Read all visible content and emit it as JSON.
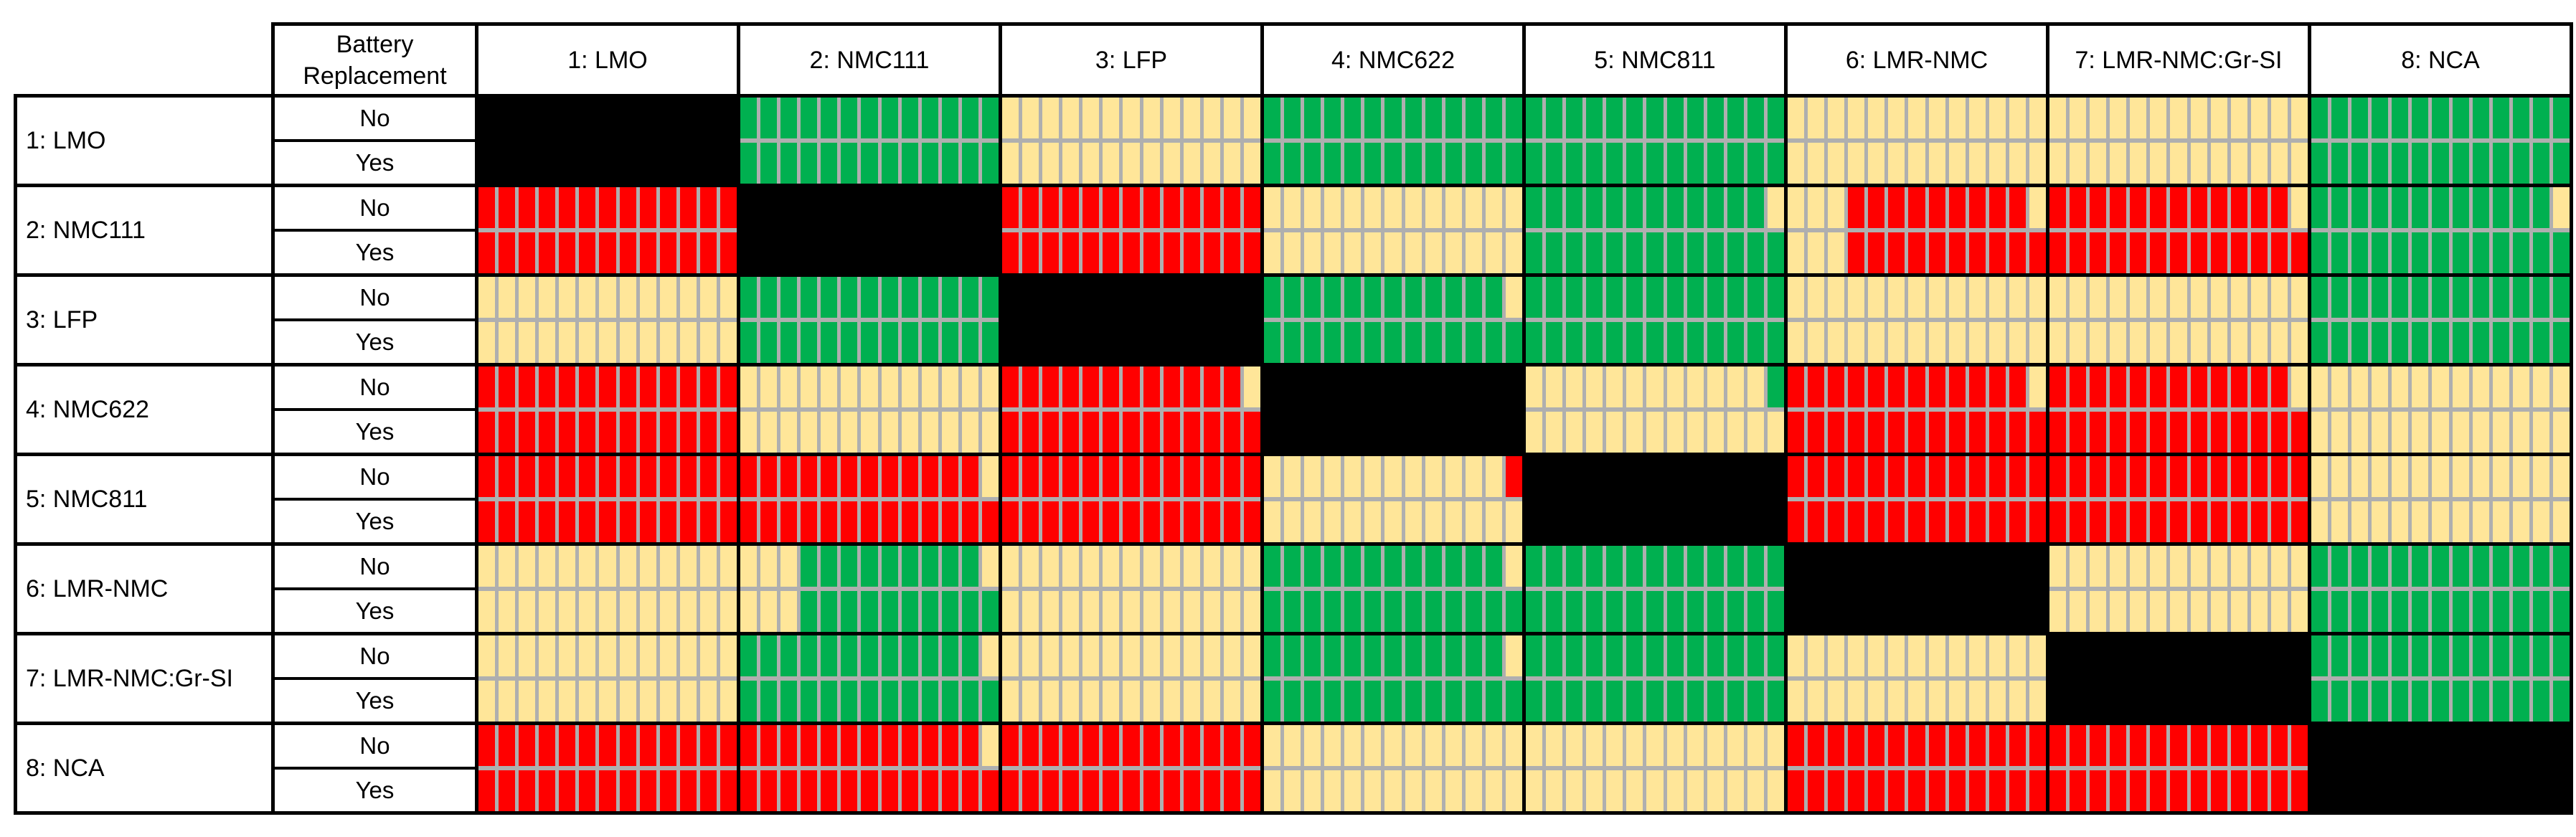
{
  "chart_data": {
    "type": "heatmap",
    "title": "",
    "corner_label": "Battery Replacement",
    "columns": [
      "1: LMO",
      "2: NMC111",
      "3: LFP",
      "4: NMC622",
      "5: NMC811",
      "6: LMR-NMC",
      "7: LMR-NMC:Gr-SI",
      "8: NCA"
    ],
    "replacement_options": [
      "No",
      "Yes"
    ],
    "bars_per_cell": 13,
    "color_key": {
      "g": "#00B050",
      "r": "#FF0000",
      "t": "#FFE699",
      "diag": "#000000",
      "divider": "#AFAFAF",
      "border": "#000000"
    },
    "matrix": [
      {
        "label": "1: LMO",
        "no": [
          "diag",
          "ggggggggggggg",
          "ttttttttttttt",
          "ggggggggggggg",
          "ggggggggggggg",
          "ttttttttttttt",
          "ttttttttttttt",
          "ggggggggggggg"
        ],
        "yes": [
          "diag",
          "ggggggggggggg",
          "ttttttttttttt",
          "ggggggggggggg",
          "ggggggggggggg",
          "ttttttttttttt",
          "ttttttttttttt",
          "ggggggggggggg"
        ]
      },
      {
        "label": "2: NMC111",
        "no": [
          "rrrrrrrrrrrrr",
          "diag",
          "rrrrrrrrrrrrr",
          "ttttttttttttt",
          "ggggggggggggt",
          "tttrrrrrrrrrt",
          "rrrrrrrrrrrrt",
          "ggggggggggggt"
        ],
        "yes": [
          "rrrrrrrrrrrrr",
          "diag",
          "rrrrrrrrrrrrr",
          "ttttttttttttt",
          "ggggggggggggg",
          "tttrrrrrrrrrr",
          "rrrrrrrrrrrrr",
          "ggggggggggggg"
        ]
      },
      {
        "label": "3: LFP",
        "no": [
          "ttttttttttttt",
          "ggggggggggggg",
          "diag",
          "ggggggggggggt",
          "ggggggggggggg",
          "ttttttttttttt",
          "ttttttttttttt",
          "ggggggggggggg"
        ],
        "yes": [
          "ttttttttttttt",
          "ggggggggggggg",
          "diag",
          "ggggggggggggg",
          "ggggggggggggg",
          "ttttttttttttt",
          "ttttttttttttt",
          "ggggggggggggg"
        ]
      },
      {
        "label": "4: NMC622",
        "no": [
          "rrrrrrrrrrrrr",
          "ttttttttttttt",
          "rrrrrrrrrrrrt",
          "diag",
          "ttttttttttttg",
          "rrrrrrrrrrrrt",
          "rrrrrrrrrrrrt",
          "ttttttttttttt"
        ],
        "yes": [
          "rrrrrrrrrrrrr",
          "ttttttttttttt",
          "rrrrrrrrrrrrr",
          "diag",
          "ttttttttttttt",
          "rrrrrrrrrrrrr",
          "rrrrrrrrrrrrr",
          "ttttttttttttt"
        ]
      },
      {
        "label": "5: NMC811",
        "no": [
          "rrrrrrrrrrrrr",
          "rrrrrrrrrrrrt",
          "rrrrrrrrrrrrr",
          "ttttttttttttr",
          "diag",
          "rrrrrrrrrrrrr",
          "rrrrrrrrrrrrr",
          "ttttttttttttt"
        ],
        "yes": [
          "rrrrrrrrrrrrr",
          "rrrrrrrrrrrrr",
          "rrrrrrrrrrrrr",
          "ttttttttttttt",
          "diag",
          "rrrrrrrrrrrrr",
          "rrrrrrrrrrrrr",
          "ttttttttttttt"
        ]
      },
      {
        "label": "6: LMR-NMC",
        "no": [
          "ttttttttttttt",
          "tttgggggggggt",
          "ttttttttttttt",
          "ggggggggggggt",
          "ggggggggggggg",
          "diag",
          "ttttttttttttt",
          "ggggggggggggg"
        ],
        "yes": [
          "ttttttttttttt",
          "tttgggggggggg",
          "ttttttttttttt",
          "ggggggggggggg",
          "ggggggggggggg",
          "diag",
          "ttttttttttttt",
          "ggggggggggggg"
        ]
      },
      {
        "label": "7: LMR-NMC:Gr-SI",
        "no": [
          "ttttttttttttt",
          "ggggggggggggt",
          "ttttttttttttt",
          "ggggggggggggt",
          "ggggggggggggg",
          "ttttttttttttt",
          "diag",
          "ggggggggggggg"
        ],
        "yes": [
          "ttttttttttttt",
          "ggggggggggggg",
          "ttttttttttttt",
          "ggggggggggggg",
          "ggggggggggggg",
          "ttttttttttttt",
          "diag",
          "ggggggggggggg"
        ]
      },
      {
        "label": "8: NCA",
        "no": [
          "rrrrrrrrrrrrr",
          "rrrrrrrrrrrrt",
          "rrrrrrrrrrrrr",
          "ttttttttttttt",
          "ttttttttttttt",
          "rrrrrrrrrrrrr",
          "rrrrrrrrrrrrr",
          "diag"
        ],
        "yes": [
          "rrrrrrrrrrrrr",
          "rrrrrrrrrrrrr",
          "rrrrrrrrrrrrr",
          "ttttttttttttt",
          "ttttttttttttt",
          "rrrrrrrrrrrrr",
          "rrrrrrrrrrrrr",
          "diag"
        ]
      }
    ]
  }
}
